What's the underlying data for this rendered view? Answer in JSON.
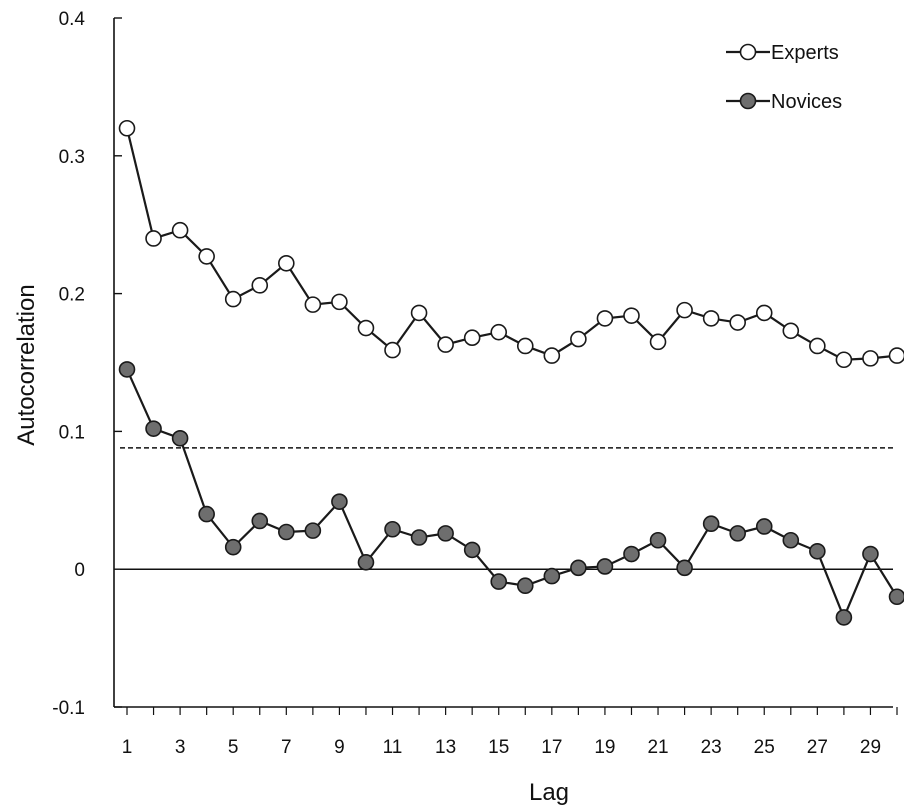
{
  "chart_data": {
    "type": "line",
    "xlabel": "Lag",
    "ylabel": "Autocorrelation",
    "x_ticks": [
      1,
      3,
      5,
      7,
      9,
      11,
      13,
      15,
      17,
      19,
      21,
      23,
      25,
      27,
      29
    ],
    "y_ticks": [
      -0.1,
      0,
      0.1,
      0.2,
      0.3,
      0.4
    ],
    "y_tick_labels": [
      "-0.1",
      "0",
      "0.1",
      "0.2",
      "0.3",
      "0.4"
    ],
    "xlim": [
      1,
      30
    ],
    "ylim": [
      -0.1,
      0.4
    ],
    "reference_lines": [
      {
        "y": 0,
        "style": "solid"
      },
      {
        "y": 0.088,
        "style": "dashed"
      }
    ],
    "legend_position": "top-right",
    "x": [
      1,
      2,
      3,
      4,
      5,
      6,
      7,
      8,
      9,
      10,
      11,
      12,
      13,
      14,
      15,
      16,
      17,
      18,
      19,
      20,
      21,
      22,
      23,
      24,
      25,
      26,
      27,
      28,
      29,
      30
    ],
    "series": [
      {
        "name": "Experts",
        "marker": "open-circle",
        "values": [
          0.32,
          0.24,
          0.246,
          0.227,
          0.196,
          0.206,
          0.222,
          0.192,
          0.194,
          0.175,
          0.159,
          0.186,
          0.163,
          0.168,
          0.172,
          0.162,
          0.155,
          0.167,
          0.182,
          0.184,
          0.165,
          0.188,
          0.182,
          0.179,
          0.186,
          0.173,
          0.162,
          0.152,
          0.153,
          0.155
        ]
      },
      {
        "name": "Novices",
        "marker": "filled-circle",
        "values": [
          0.145,
          0.102,
          0.095,
          0.04,
          0.016,
          0.035,
          0.027,
          0.028,
          0.049,
          0.005,
          0.029,
          0.023,
          0.026,
          0.014,
          -0.009,
          -0.012,
          -0.005,
          0.001,
          0.002,
          0.011,
          0.021,
          0.001,
          0.033,
          0.026,
          0.031,
          0.021,
          0.013,
          -0.035,
          0.011,
          -0.02
        ]
      }
    ]
  },
  "colors": {
    "line": "#1a1a1a",
    "open_marker_fill": "#ffffff",
    "filled_marker_fill": "#6e6e6e"
  }
}
